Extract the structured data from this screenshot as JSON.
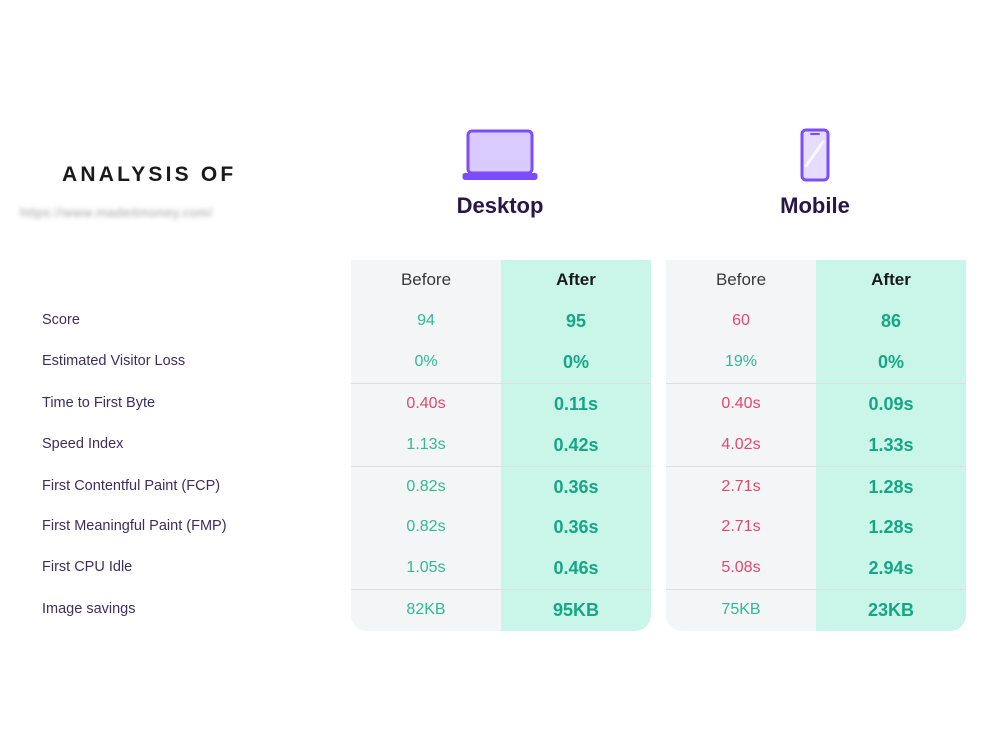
{
  "header": {
    "title": "ANALYSIS OF",
    "url": "https://www.madeitmoney.com/"
  },
  "devices": {
    "desktop": {
      "label": "Desktop",
      "icon": "laptop-icon"
    },
    "mobile": {
      "label": "Mobile",
      "icon": "phone-icon"
    }
  },
  "columns": {
    "before": "Before",
    "after": "After"
  },
  "colors": {
    "accent": "#7c4dff",
    "good": "#2fba96",
    "bad": "#e4476c",
    "after_bg": "#c9f6e8"
  },
  "metrics": [
    {
      "label": "Score",
      "desktop_before": "94",
      "desktop_after": "95",
      "mobile_before": "60",
      "mobile_after": "86"
    },
    {
      "label": "Estimated Visitor Loss",
      "desktop_before": "0%",
      "desktop_after": "0%",
      "mobile_before": "19%",
      "mobile_after": "0%"
    },
    {
      "label": "Time to First Byte",
      "desktop_before": "0.40s",
      "desktop_after": "0.11s",
      "mobile_before": "0.40s",
      "mobile_after": "0.09s"
    },
    {
      "label": "Speed Index",
      "desktop_before": "1.13s",
      "desktop_after": "0.42s",
      "mobile_before": "4.02s",
      "mobile_after": "1.33s"
    },
    {
      "label": "First Contentful Paint (FCP)",
      "desktop_before": "0.82s",
      "desktop_after": "0.36s",
      "mobile_before": "2.71s",
      "mobile_after": "1.28s"
    },
    {
      "label": "First Meaningful Paint (FMP)",
      "desktop_before": "0.82s",
      "desktop_after": "0.36s",
      "mobile_before": "2.71s",
      "mobile_after": "1.28s"
    },
    {
      "label": "First CPU Idle",
      "desktop_before": "1.05s",
      "desktop_after": "0.46s",
      "mobile_before": "5.08s",
      "mobile_after": "2.94s"
    },
    {
      "label": "Image savings",
      "desktop_before": "82KB",
      "desktop_after": "95KB",
      "mobile_before": "75KB",
      "mobile_after": "23KB"
    }
  ]
}
